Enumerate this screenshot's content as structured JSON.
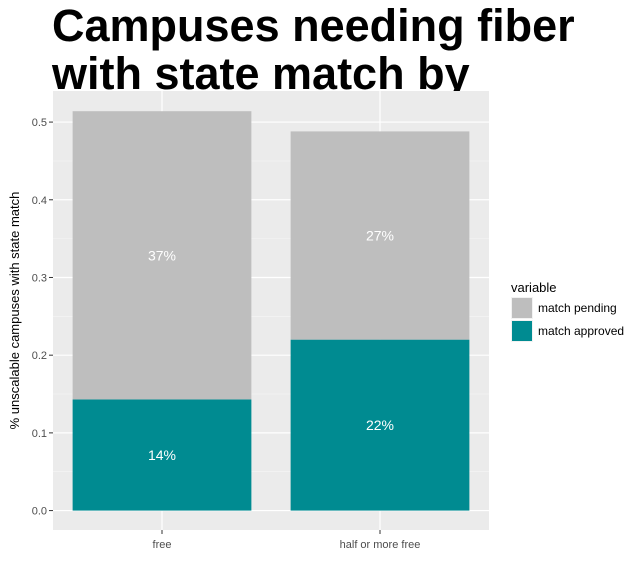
{
  "chart_data": {
    "type": "bar",
    "stacked": true,
    "title": "Campuses needing fiber with state match by discount",
    "xlabel": "",
    "ylabel": "% unscalable campuses with state match",
    "categories": [
      "free",
      "half or more free"
    ],
    "series": [
      {
        "name": "match approved",
        "color": "#008b91",
        "values": [
          0.143,
          0.22
        ],
        "labels": [
          "14%",
          "22%"
        ]
      },
      {
        "name": "match pending",
        "color": "#bebebe",
        "values": [
          0.371,
          0.268
        ],
        "labels": [
          "37%",
          "27%"
        ]
      }
    ],
    "ylim": [
      -0.025,
      0.54
    ],
    "yticks": [
      0.0,
      0.1,
      0.2,
      0.3,
      0.4,
      0.5
    ],
    "ytick_labels": [
      "0.0",
      "0.1",
      "0.2",
      "0.3",
      "0.4",
      "0.5"
    ],
    "grid": true,
    "panel_background": "#ebebeb",
    "legend": {
      "title": "variable",
      "placement": "right",
      "entries": [
        {
          "label": "match pending",
          "color": "#bebebe"
        },
        {
          "label": "match approved",
          "color": "#008b91"
        }
      ]
    }
  }
}
